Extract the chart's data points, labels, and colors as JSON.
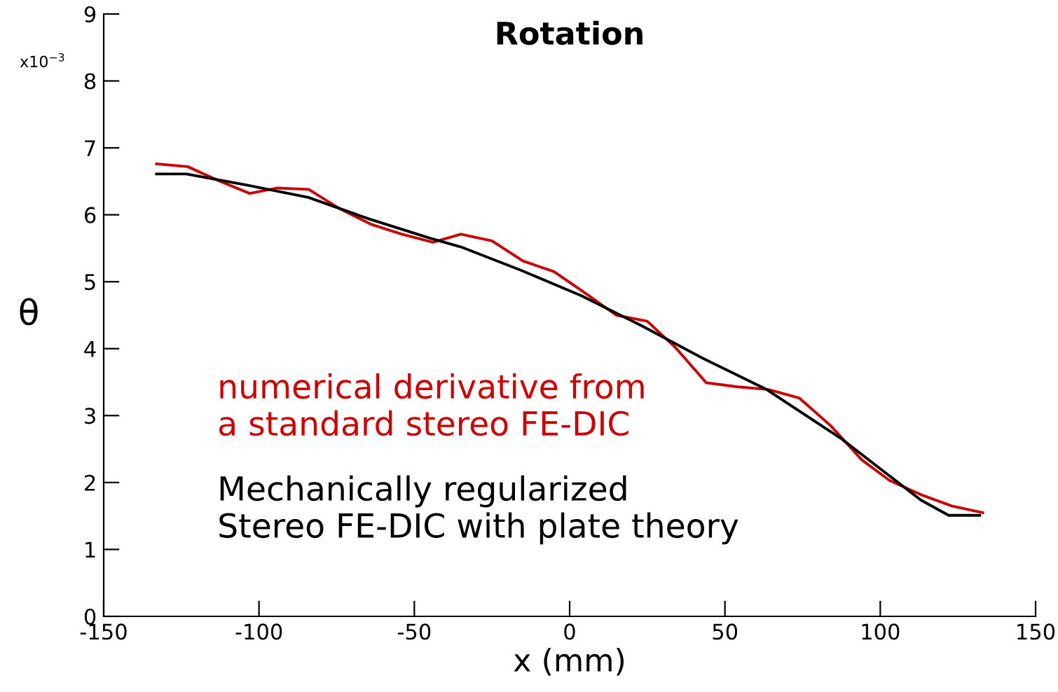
{
  "chart_data": {
    "type": "line",
    "title": "Rotation",
    "xlabel": "x (mm)",
    "ylabel": "θ",
    "annotations": [
      "x10$^{−3}$"
    ],
    "xlim": [
      -150,
      150
    ],
    "xticks": [
      -150,
      -100,
      -50,
      0,
      50,
      100,
      150
    ],
    "ylim": [
      0,
      9
    ],
    "yticks": [
      0,
      1,
      2,
      3,
      4,
      5,
      6,
      7,
      8,
      9
    ],
    "grid": false,
    "legend": "left",
    "marker": "none",
    "line_style": "solid",
    "series": [
      {
        "name": "numerical derivative from\na standard stereo FE-DIC",
        "color": "#cc0000",
        "x": [
          -133,
          -123,
          -113,
          -103,
          -94,
          -84,
          -74,
          -64,
          -54,
          -44,
          -35,
          -25,
          -15,
          -5,
          5,
          15,
          25,
          34,
          44,
          54,
          64,
          74,
          84,
          94,
          103,
          113,
          123,
          133
        ],
        "values": [
          6.76,
          6.72,
          6.51,
          6.32,
          6.4,
          6.38,
          6.09,
          5.86,
          5.71,
          5.59,
          5.71,
          5.61,
          5.31,
          5.15,
          4.83,
          4.5,
          4.41,
          4.02,
          3.49,
          3.43,
          3.39,
          3.26,
          2.85,
          2.34,
          2.03,
          1.82,
          1.65,
          1.55
        ]
      },
      {
        "name": "Mechanically regularized\nStereo FE-DIC with plate theory",
        "color": "#000000",
        "x": [
          -133,
          -123.4,
          -103.5,
          -84.1,
          -64.7,
          -44.9,
          -35,
          -15.6,
          3.8,
          23.7,
          43.1,
          63.4,
          87.3,
          113,
          122,
          132
        ],
        "values": [
          6.61,
          6.61,
          6.44,
          6.26,
          5.94,
          5.65,
          5.52,
          5.17,
          4.79,
          4.33,
          3.85,
          3.39,
          2.66,
          1.74,
          1.51,
          1.51
        ]
      }
    ]
  }
}
